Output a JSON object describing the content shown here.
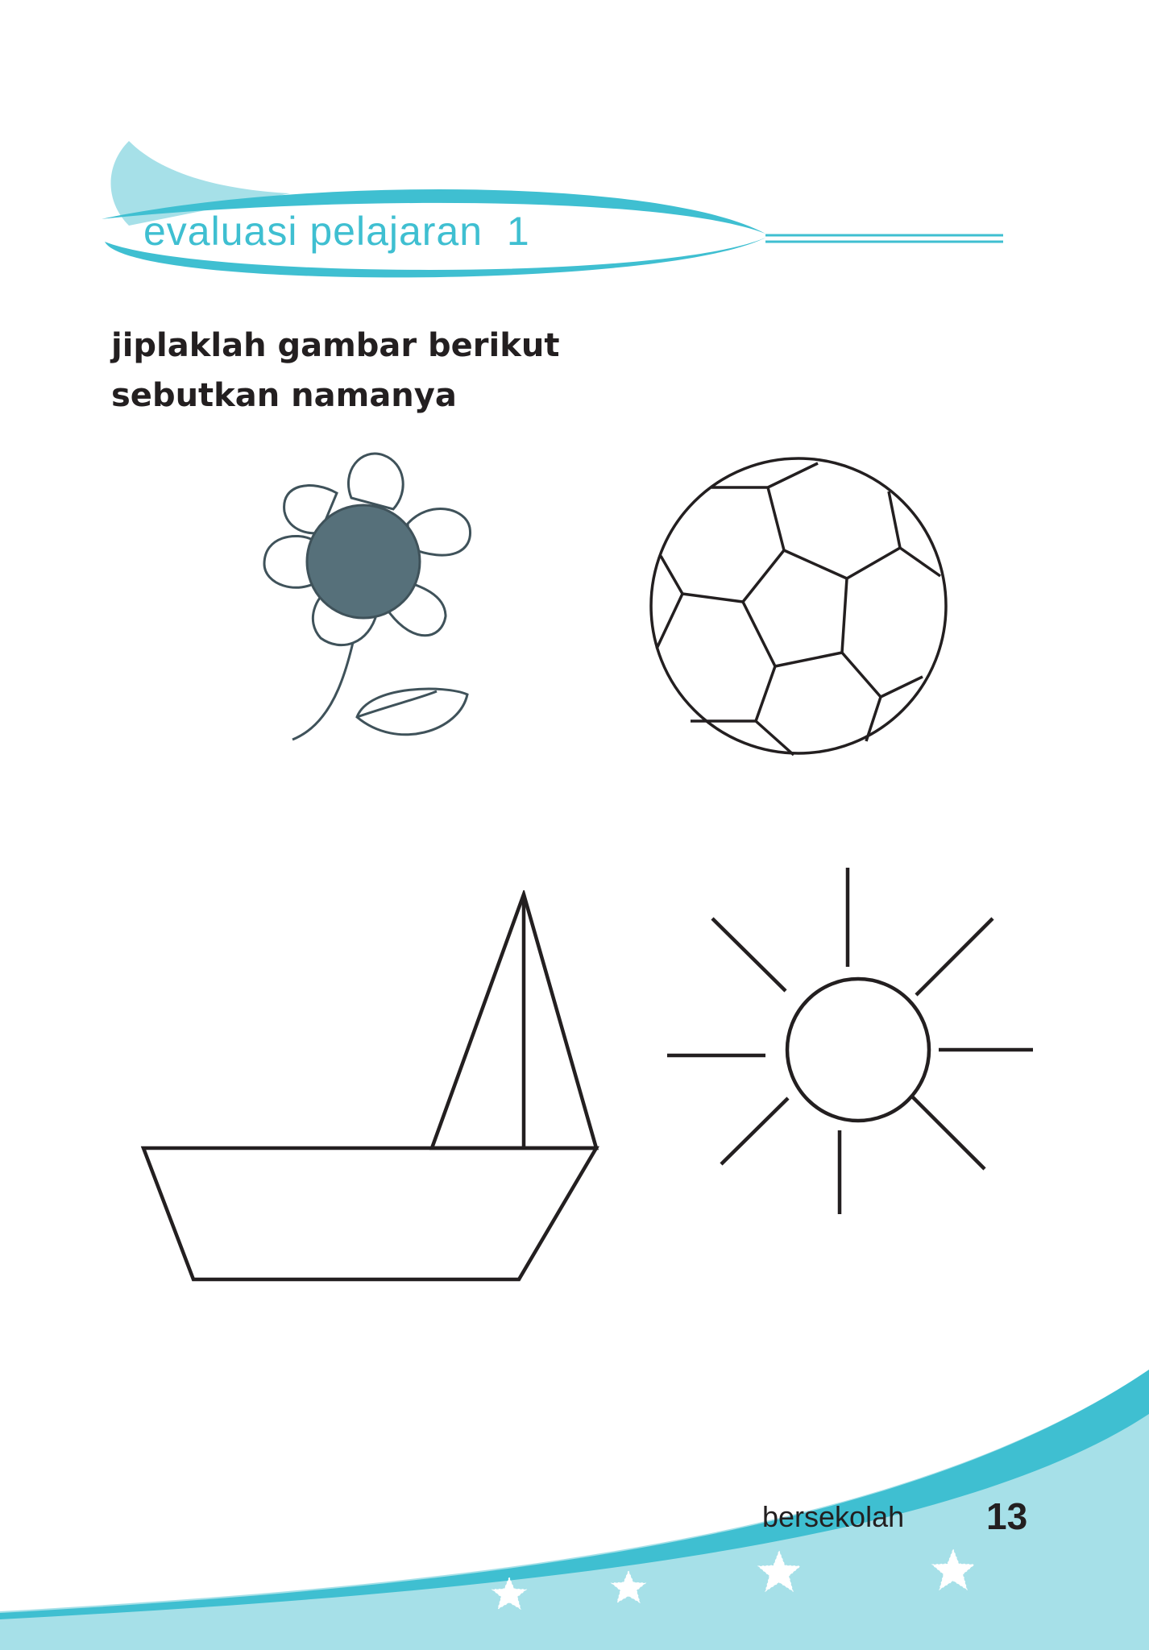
{
  "header": {
    "title": "evaluasi pelajaran  1"
  },
  "instructions": {
    "line1": "jiplaklah gambar berikut",
    "line2": "sebutkan namanya"
  },
  "figures": [
    {
      "name": "flower",
      "fill_color": "#56707a"
    },
    {
      "name": "soccer-ball"
    },
    {
      "name": "sailboat"
    },
    {
      "name": "sun"
    }
  ],
  "footer": {
    "label": "bersekolah",
    "page_number": "13"
  },
  "colors": {
    "accent": "#3fbfd1",
    "accent_light": "#a6e0e8",
    "ink": "#231f20"
  }
}
